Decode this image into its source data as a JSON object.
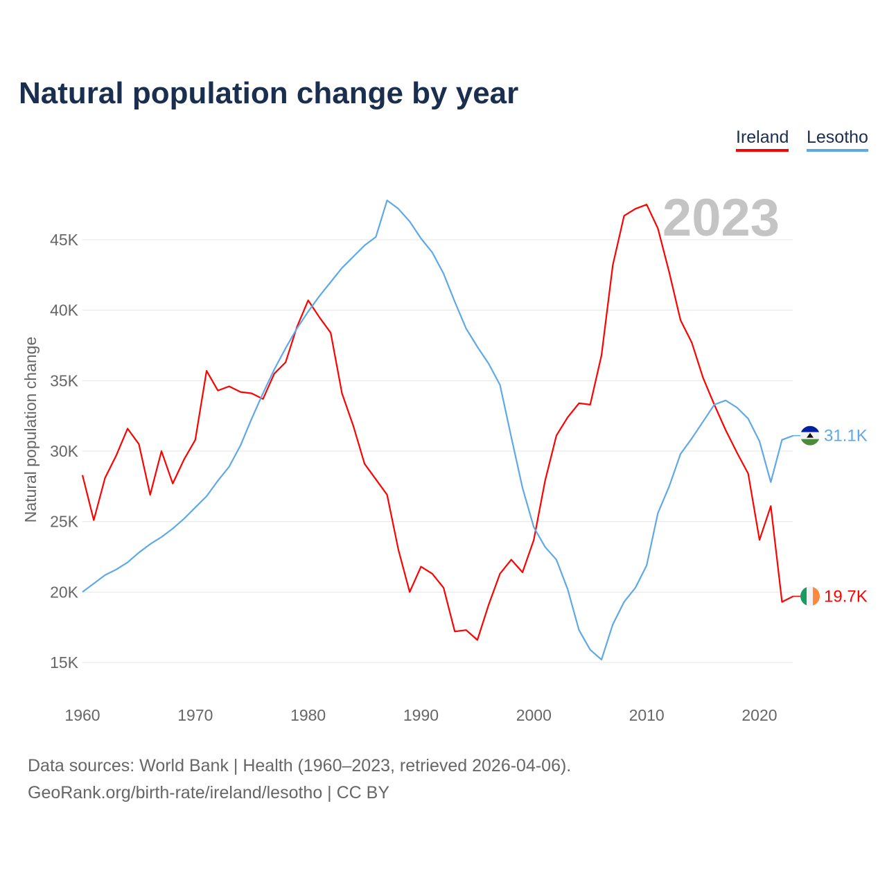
{
  "chart_data": {
    "type": "line",
    "title": "Natural population change by year",
    "xlabel": "",
    "ylabel": "Natural population change",
    "ylim": [
      15,
      47.5
    ],
    "xlim": [
      1960,
      2023
    ],
    "y_ticks": [
      {
        "v": 15,
        "label": "15K"
      },
      {
        "v": 20,
        "label": "20K"
      },
      {
        "v": 25,
        "label": "25K"
      },
      {
        "v": 30,
        "label": "30K"
      },
      {
        "v": 35,
        "label": "35K"
      },
      {
        "v": 40,
        "label": "40K"
      },
      {
        "v": 45,
        "label": "45K"
      }
    ],
    "x_ticks": [
      1960,
      1970,
      1980,
      1990,
      2000,
      2010,
      2020
    ],
    "grid": true,
    "legend_position": "top-right",
    "year_label": "2023",
    "x": [
      1960,
      1961,
      1962,
      1963,
      1964,
      1965,
      1966,
      1967,
      1968,
      1969,
      1970,
      1971,
      1972,
      1973,
      1974,
      1975,
      1976,
      1977,
      1978,
      1979,
      1980,
      1981,
      1982,
      1983,
      1984,
      1985,
      1986,
      1987,
      1988,
      1989,
      1990,
      1991,
      1992,
      1993,
      1994,
      1995,
      1996,
      1997,
      1998,
      1999,
      2000,
      2001,
      2002,
      2003,
      2004,
      2005,
      2006,
      2007,
      2008,
      2009,
      2010,
      2011,
      2012,
      2013,
      2014,
      2015,
      2016,
      2017,
      2018,
      2019,
      2020,
      2021,
      2022,
      2023
    ],
    "series": [
      {
        "name": "Ireland",
        "color": "#ff0000",
        "end_label": "19.7K",
        "flag": "ireland-flag",
        "values": [
          28.3,
          25.1,
          28.1,
          29.7,
          31.6,
          30.5,
          26.9,
          30.0,
          27.7,
          29.4,
          30.8,
          35.7,
          34.3,
          34.6,
          34.2,
          34.1,
          33.7,
          35.5,
          36.3,
          38.8,
          40.7,
          39.5,
          38.4,
          34.1,
          31.8,
          29.1,
          28.0,
          26.9,
          23.0,
          20.0,
          21.8,
          21.3,
          20.3,
          17.2,
          17.3,
          16.6,
          19.1,
          21.3,
          22.3,
          21.4,
          23.7,
          27.9,
          31.1,
          32.4,
          33.4,
          33.3,
          36.8,
          43.2,
          46.7,
          47.2,
          47.5,
          45.8,
          42.7,
          39.3,
          37.7,
          35.2,
          33.3,
          31.5,
          29.9,
          28.4,
          23.7,
          26.1,
          19.3,
          19.7
        ]
      },
      {
        "name": "Lesotho",
        "color": "#5fa8e8",
        "end_label": "31.1K",
        "flag": "lesotho-flag",
        "values": [
          20.0,
          20.6,
          21.2,
          21.6,
          22.1,
          22.8,
          23.4,
          23.9,
          24.5,
          25.2,
          26.0,
          26.8,
          27.9,
          28.9,
          30.4,
          32.3,
          34.1,
          35.8,
          37.3,
          38.7,
          39.9,
          41.0,
          42.0,
          43.0,
          43.8,
          44.6,
          45.2,
          47.8,
          47.2,
          46.3,
          45.1,
          44.1,
          42.6,
          40.6,
          38.7,
          37.4,
          36.2,
          34.7,
          31.0,
          27.4,
          24.6,
          23.2,
          22.3,
          20.2,
          17.3,
          15.9,
          15.2,
          17.7,
          19.3,
          20.3,
          21.9,
          25.6,
          27.5,
          29.8,
          30.9,
          32.1,
          33.3,
          33.6,
          33.1,
          32.3,
          30.7,
          27.8,
          30.8,
          31.1
        ]
      }
    ]
  },
  "footer": {
    "line1": "Data sources: World Bank | Health (1960–2023, retrieved 2026-04-06).",
    "line2": "GeoRank.org/birth-rate/ireland/lesotho | CC BY"
  }
}
